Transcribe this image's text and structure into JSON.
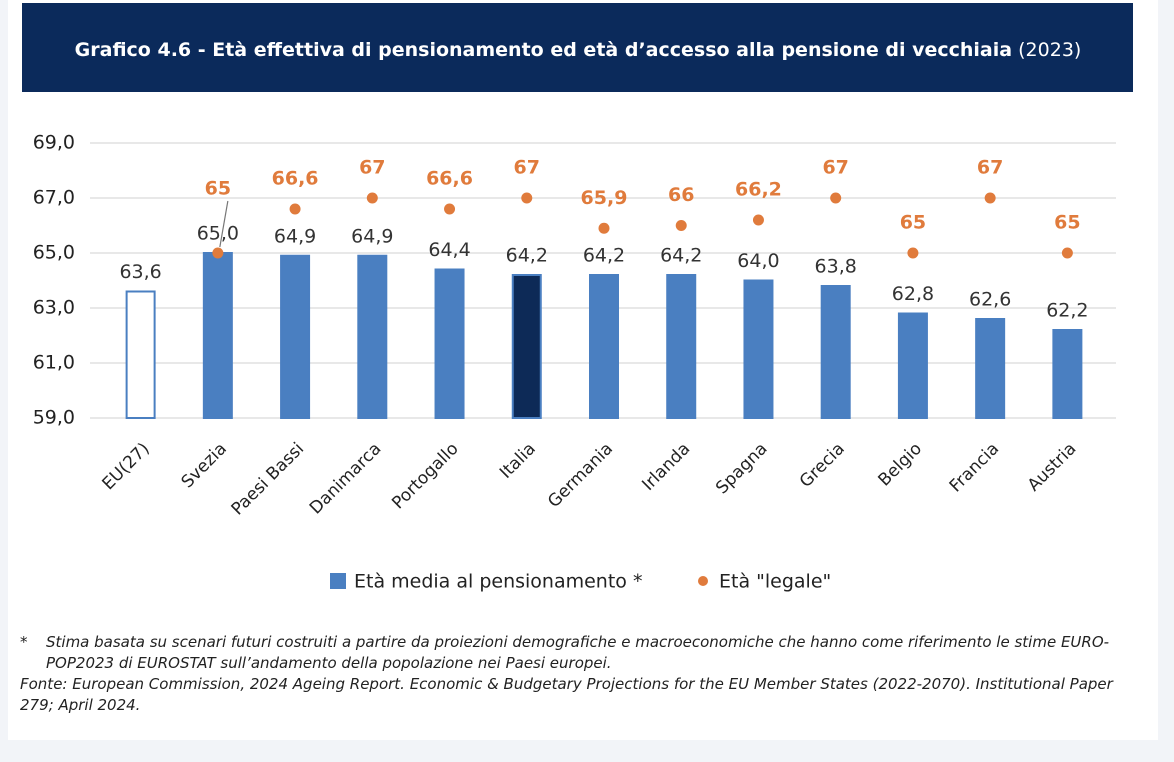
{
  "chart_data": {
    "type": "bar",
    "title": "Grafico 4.6 - Età effettiva di pensionamento ed età d’accesso alla pensione di vecchiaia",
    "subtitle": "(2023)",
    "categories": [
      "EU(27)",
      "Svezia",
      "Paesi Bassi",
      "Danimarca",
      "Portogallo",
      "Italia",
      "Germania",
      "Irlanda",
      "Spagna",
      "Grecia",
      "Belgio",
      "Francia",
      "Austria"
    ],
    "series": [
      {
        "name": "Età media al pensionamento *",
        "color": "#4a7fc1",
        "colors": [
          "#ffffff",
          "#4a7fc1",
          "#4a7fc1",
          "#4a7fc1",
          "#4a7fc1",
          "#0d2a57",
          "#4a7fc1",
          "#4a7fc1",
          "#4a7fc1",
          "#4a7fc1",
          "#4a7fc1",
          "#4a7fc1",
          "#4a7fc1"
        ],
        "values": [
          63.6,
          65.0,
          64.9,
          64.9,
          64.4,
          64.2,
          64.2,
          64.2,
          64.0,
          63.8,
          62.8,
          62.6,
          62.2
        ],
        "value_labels": [
          "63,6",
          "65,0",
          "64,9",
          "64,9",
          "64,4",
          "64,2",
          "64,2",
          "64,2",
          "64,0",
          "63,8",
          "62,8",
          "62,6",
          "62,2"
        ]
      },
      {
        "name": "Età \"legale\"",
        "type": "scatter",
        "color": "#e07b3c",
        "values": [
          null,
          65,
          66.6,
          67,
          66.6,
          67,
          65.9,
          66,
          66.2,
          67,
          65,
          67,
          65
        ],
        "value_labels": [
          null,
          "65",
          "66,6",
          "67",
          "66,6",
          "67",
          "65,9",
          "66",
          "66,2",
          "67",
          "65",
          "67",
          "65"
        ]
      }
    ],
    "ylim": [
      59,
      69
    ],
    "yticks": [
      {
        "value": 59,
        "label": "59,0"
      },
      {
        "value": 61,
        "label": "61,0"
      },
      {
        "value": 63,
        "label": "63,0"
      },
      {
        "value": 65,
        "label": "65,0"
      },
      {
        "value": 67,
        "label": "67,0"
      },
      {
        "value": 69,
        "label": "69,0"
      }
    ],
    "grid": true,
    "legend": "bottom"
  },
  "notes": [
    {
      "marker": "*",
      "text": "Stima basata su scenari futuri costruiti a partire da proiezioni demografiche e macroeconomiche che hanno come riferimento le stime EURO-POP2023 di EUROSTAT sull’andamento della popolazione nei Paesi europei."
    },
    {
      "text": "Fonte: European Commission, 2024 Ageing Report. Economic & Budgetary Projections for the EU Member States (2022-2070). Institutional Paper 279; April 2024."
    }
  ]
}
